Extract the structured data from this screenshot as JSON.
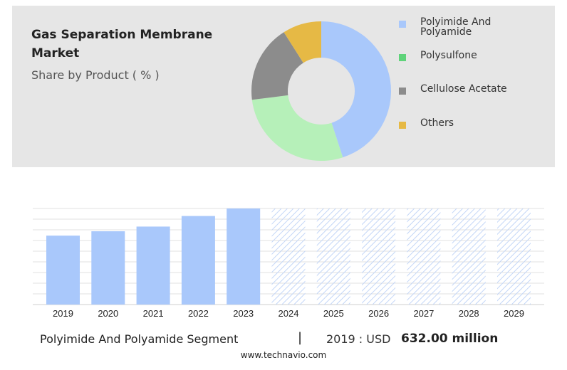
{
  "header": {
    "title": "Gas Separation Membrane Market",
    "subtitle": "Share by Product ( % )"
  },
  "colors": {
    "blue": "#a9c8fb",
    "green": "#b6f0b9",
    "gray": "#8c8c8c",
    "gold": "#e6b945",
    "swatch_green": "#5fd37a",
    "forecast_hatch": "#c3d6f7"
  },
  "chart_data": [
    {
      "type": "pie",
      "donut": true,
      "labels": [
        "Polyimide And Polyamide",
        "Polysulfone",
        "Cellulose Acetate",
        "Others"
      ],
      "values": [
        45,
        28,
        18,
        9
      ]
    },
    {
      "type": "bar",
      "categories": [
        "2019",
        "2020",
        "2021",
        "2022",
        "2023",
        "2024",
        "2025",
        "2026",
        "2027",
        "2028",
        "2029"
      ],
      "values": [
        632,
        672,
        715,
        812,
        881,
        881,
        881,
        881,
        881,
        881,
        881
      ],
      "forecast_start_index": 5,
      "grid": true
    }
  ],
  "footer": {
    "segment": "Polyimide And Polyamide Segment",
    "separator": "|",
    "year_label": "2019 : USD",
    "value": "632.00 million",
    "url": "www.technavio.com"
  }
}
